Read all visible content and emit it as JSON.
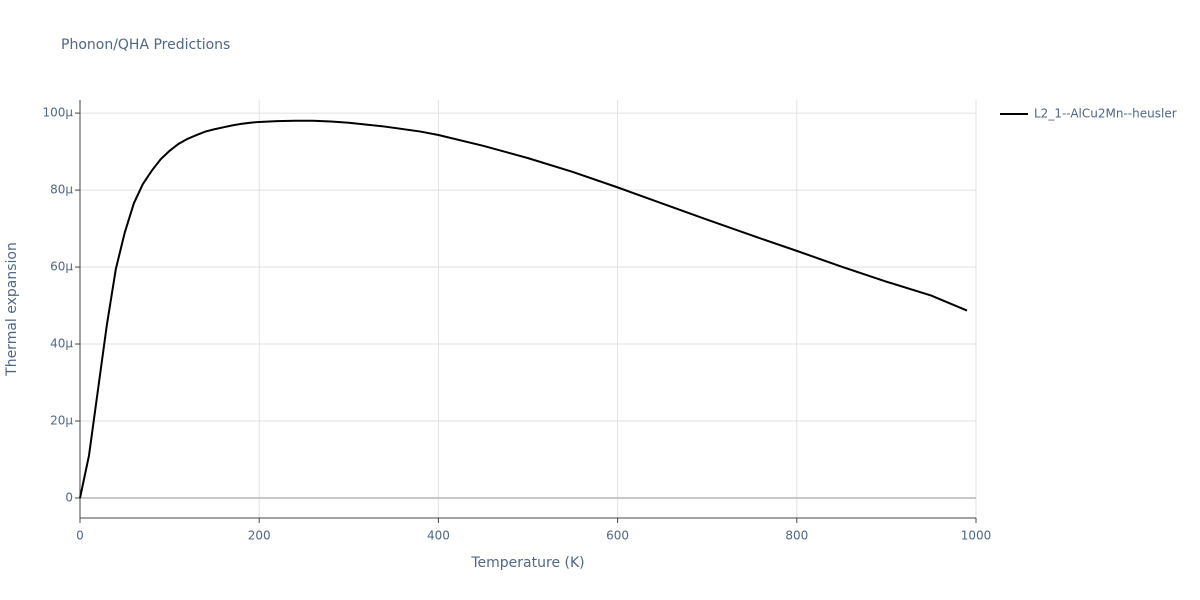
{
  "chart_data": {
    "type": "line",
    "title": "Phonon/QHA Predictions",
    "x_label": "Temperature (K)",
    "y_label": "Thermal expansion",
    "x": [
      0,
      10,
      20,
      30,
      40,
      50,
      60,
      70,
      80,
      90,
      100,
      110,
      120,
      130,
      140,
      150,
      160,
      170,
      180,
      190,
      200,
      220,
      240,
      260,
      280,
      300,
      340,
      380,
      400,
      450,
      500,
      550,
      600,
      650,
      700,
      750,
      800,
      850,
      900,
      950,
      990
    ],
    "series": [
      {
        "name": "L2_1--AlCu2Mn--heusler",
        "color": "#000000",
        "values": [
          0,
          1.1e-05,
          2.8e-05,
          4.5e-05,
          5.95e-05,
          6.9e-05,
          7.65e-05,
          8.15e-05,
          8.5e-05,
          8.8e-05,
          9.02e-05,
          9.2e-05,
          9.33e-05,
          9.43e-05,
          9.52e-05,
          9.58e-05,
          9.63e-05,
          9.68e-05,
          9.72e-05,
          9.75e-05,
          9.77e-05,
          9.79e-05,
          9.8e-05,
          9.8e-05,
          9.78e-05,
          9.75e-05,
          9.65e-05,
          9.52e-05,
          9.43e-05,
          9.15e-05,
          8.83e-05,
          8.47e-05,
          8.07e-05,
          7.65e-05,
          7.23e-05,
          6.82e-05,
          6.42e-05,
          6.01e-05,
          5.62e-05,
          5.26e-05,
          4.87e-05
        ]
      }
    ],
    "xlim": [
      0,
      1000
    ],
    "xticks": [
      0,
      200,
      400,
      600,
      800,
      1000
    ],
    "ylim": [
      -5.2e-06,
      0.0001034
    ],
    "yticks": [
      0,
      {
        "value": 2e-05,
        "label": "20μ"
      },
      {
        "value": 4e-05,
        "label": "40μ"
      },
      {
        "value": 6e-05,
        "label": "60μ"
      },
      {
        "value": 8e-05,
        "label": "80μ"
      },
      {
        "value": 0.0001,
        "label": "100μ"
      }
    ],
    "grid": true,
    "legend": "top-right"
  }
}
